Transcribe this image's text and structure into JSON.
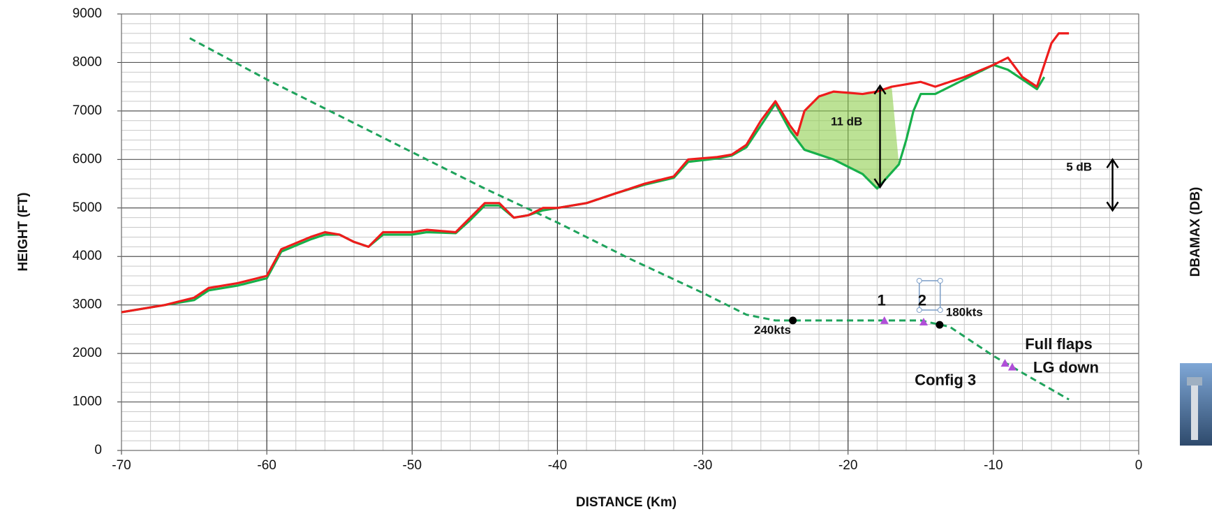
{
  "chart_data": {
    "type": "line",
    "xlabel": "DISTANCE (Km)",
    "ylabel": "HEIGHT (FT)",
    "y2label": "DBAMAX (DB)",
    "xlim": [
      -70,
      0
    ],
    "ylim": [
      0,
      9000
    ],
    "xticks": [
      -70,
      -60,
      -50,
      -40,
      -30,
      -20,
      -10,
      0
    ],
    "yticks": [
      0,
      1000,
      2000,
      3000,
      4000,
      5000,
      6000,
      7000,
      8000,
      9000
    ],
    "grid": true,
    "minor_grid": true,
    "series": [
      {
        "color": "#1fa35c",
        "dashed": true,
        "x": [
          -65.3,
          -60,
          -55,
          -50,
          -45,
          -40,
          -35,
          -30,
          -27,
          -25,
          -20,
          -15,
          -13,
          -10,
          -8,
          -4.8
        ],
        "values": [
          8500,
          7650,
          6900,
          6150,
          5400,
          4700,
          3950,
          3250,
          2800,
          2680,
          2680,
          2680,
          2550,
          1950,
          1600,
          1050
        ]
      },
      {
        "color": "#17b04a",
        "x": [
          -70,
          -67,
          -65,
          -64,
          -62,
          -60,
          -59,
          -57,
          -56,
          -55,
          -54,
          -53,
          -52,
          -50,
          -49,
          -47,
          -46,
          -45,
          -44,
          -43,
          -42,
          -41,
          -40,
          -38,
          -36,
          -34,
          -32,
          -31,
          -29,
          -28,
          -27,
          -26,
          -25,
          -24,
          -23,
          -21,
          -19,
          -18,
          -16.5,
          -16,
          -15.5,
          -15,
          -14,
          -12,
          -10,
          -9,
          -8,
          -7,
          -6.5
        ],
        "values": [
          2850,
          3000,
          3100,
          3300,
          3400,
          3550,
          4100,
          4350,
          4450,
          4450,
          4300,
          4200,
          4450,
          4450,
          4500,
          4480,
          4750,
          5050,
          5050,
          4800,
          4850,
          4950,
          5000,
          5100,
          5300,
          5480,
          5620,
          5950,
          6020,
          6080,
          6250,
          6700,
          7150,
          6600,
          6200,
          6000,
          5700,
          5400,
          5900,
          6400,
          7000,
          7350,
          7350,
          7650,
          7950,
          7850,
          7650,
          7450,
          7700
        ]
      },
      {
        "color": "#ee1c1c",
        "x": [
          -70,
          -67,
          -65,
          -64,
          -62,
          -60,
          -59,
          -57,
          -56,
          -55,
          -54,
          -53,
          -52,
          -50,
          -49,
          -47,
          -46,
          -45,
          -44,
          -43,
          -42,
          -41,
          -40,
          -38,
          -36,
          -34,
          -32,
          -31,
          -29,
          -28,
          -27,
          -26,
          -25,
          -24,
          -23.5,
          -23,
          -22,
          -21,
          -19,
          -18,
          -17,
          -15,
          -14,
          -12,
          -10,
          -9,
          -8,
          -7,
          -6,
          -5.5,
          -4.8
        ],
        "values": [
          2850,
          3000,
          3150,
          3350,
          3450,
          3600,
          4150,
          4400,
          4500,
          4450,
          4300,
          4200,
          4500,
          4500,
          4550,
          4500,
          4800,
          5100,
          5100,
          4800,
          4850,
          5000,
          5000,
          5100,
          5300,
          5500,
          5650,
          6000,
          6050,
          6100,
          6300,
          6800,
          7200,
          6700,
          6500,
          7000,
          7300,
          7400,
          7350,
          7400,
          7500,
          7600,
          7500,
          7700,
          7950,
          8100,
          7700,
          7500,
          8400,
          8600,
          8600
        ]
      }
    ],
    "points": [
      {
        "x": -23.8,
        "y": 2680,
        "color": "#000000"
      },
      {
        "x": -13.7,
        "y": 2590,
        "color": "#000000"
      },
      {
        "x": -17.5,
        "y": 2680,
        "color": "#b04fd8"
      },
      {
        "x": -14.8,
        "y": 2650,
        "color": "#b04fd8"
      },
      {
        "x": -9.2,
        "y": 1800,
        "color": "#b04fd8"
      },
      {
        "x": -8.7,
        "y": 1720,
        "color": "#b04fd8"
      }
    ],
    "annotations": [
      {
        "text": "11 dB",
        "x": -20.1,
        "y": 6770,
        "color": "#000000"
      },
      {
        "text": "5 dB",
        "x": -4.1,
        "y": 5830,
        "color": "#000000"
      },
      {
        "text": "240kts",
        "x": -25.2,
        "y": 2470,
        "color": "#000000"
      },
      {
        "text": "180kts",
        "x": -12,
        "y": 2840,
        "color": "#000000"
      },
      {
        "text": "1",
        "x": -17.7,
        "y": 3070,
        "color": "#1aa040"
      },
      {
        "text": "2",
        "x": -14.9,
        "y": 3070,
        "color": "#1aa040"
      },
      {
        "text": "Full flaps",
        "x": -5.5,
        "y": 2170,
        "color": "#1aa040"
      },
      {
        "text": "LG down",
        "x": -5,
        "y": 1690,
        "color": "#1aa040"
      },
      {
        "text": "Config 3",
        "x": -13.3,
        "y": 1430,
        "color": "#1aa040"
      }
    ]
  }
}
